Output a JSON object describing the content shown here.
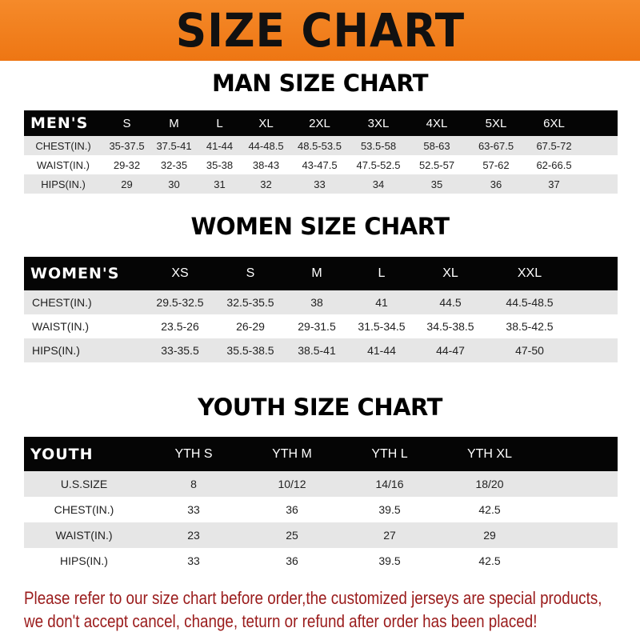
{
  "banner": {
    "title": "SIZE CHART",
    "color": "#f07d1c"
  },
  "men": {
    "title": "MAN SIZE CHART",
    "header": [
      "MEN'S",
      "S",
      "M",
      "L",
      "XL",
      "2XL",
      "3XL",
      "4XL",
      "5XL",
      "6XL"
    ],
    "rows": [
      [
        "CHEST(IN.)",
        "35-37.5",
        "37.5-41",
        "41-44",
        "44-48.5",
        "48.5-53.5",
        "53.5-58",
        "58-63",
        "63-67.5",
        "67.5-72"
      ],
      [
        "WAIST(IN.)",
        "29-32",
        "32-35",
        "35-38",
        "38-43",
        "43-47.5",
        "47.5-52.5",
        "52.5-57",
        "57-62",
        "62-66.5"
      ],
      [
        "HIPS(IN.)",
        "29",
        "30",
        "31",
        "32",
        "33",
        "34",
        "35",
        "36",
        "37"
      ]
    ]
  },
  "women": {
    "title": "WOMEN SIZE CHART",
    "header": [
      "WOMEN'S",
      "XS",
      "S",
      "M",
      "L",
      "XL",
      "XXL"
    ],
    "rows": [
      [
        "CHEST(IN.)",
        "29.5-32.5",
        "32.5-35.5",
        "38",
        "41",
        "44.5",
        "44.5-48.5"
      ],
      [
        "WAIST(IN.)",
        "23.5-26",
        "26-29",
        "29-31.5",
        "31.5-34.5",
        "34.5-38.5",
        "38.5-42.5"
      ],
      [
        "HIPS(IN.)",
        "33-35.5",
        "35.5-38.5",
        "38.5-41",
        "41-44",
        "44-47",
        "47-50"
      ]
    ]
  },
  "youth": {
    "title": "YOUTH SIZE CHART",
    "header": [
      "YOUTH",
      "YTH S",
      "YTH M",
      "YTH L",
      "YTH XL"
    ],
    "rows": [
      [
        "U.S.SIZE",
        "8",
        "10/12",
        "14/16",
        "18/20"
      ],
      [
        "CHEST(IN.)",
        "33",
        "36",
        "39.5",
        "42.5"
      ],
      [
        "WAIST(IN.)",
        "23",
        "25",
        "27",
        "29"
      ],
      [
        "HIPS(IN.)",
        "33",
        "36",
        "39.5",
        "42.5"
      ]
    ]
  },
  "note": {
    "line1": "Please refer to our size chart before order,the customized jerseys are special products,",
    "line2": "we don't accept cancel, change, teturn or refund after order has been placed!",
    "color": "#9a1b1b"
  }
}
